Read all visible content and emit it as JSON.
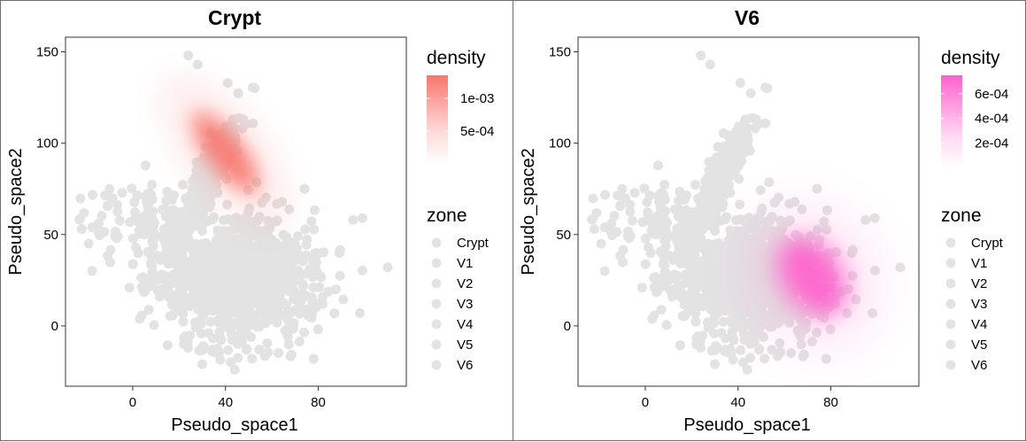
{
  "chart_data": [
    {
      "type": "scatter",
      "title": "Crypt",
      "xlabel": "Pseudo_space1",
      "ylabel": "Pseudo_space2",
      "xlim": [
        -29,
        118
      ],
      "ylim": [
        -33,
        158
      ],
      "xticks": [
        0,
        40,
        80
      ],
      "yticks": [
        0,
        50,
        100,
        150
      ],
      "point_color": "#e3e3e3",
      "density_color": "#f8766d",
      "density_center": [
        40,
        95
      ],
      "density_axes": [
        6,
        18
      ],
      "density_angle_deg": -38,
      "density_legend": {
        "title": "density",
        "labels": [
          "1e-03",
          "5e-04"
        ],
        "values": [
          0.001,
          0.0005
        ],
        "range": [
          0,
          0.00135
        ]
      },
      "zone_legend": {
        "title": "zone",
        "labels": [
          "Crypt",
          "V1",
          "V2",
          "V3",
          "V4",
          "V5",
          "V6"
        ]
      }
    },
    {
      "type": "scatter",
      "title": "V6",
      "xlabel": "Pseudo_space1",
      "ylabel": "Pseudo_space2",
      "xlim": [
        -29,
        118
      ],
      "ylim": [
        -33,
        158
      ],
      "xticks": [
        0,
        40,
        80
      ],
      "yticks": [
        0,
        50,
        100,
        150
      ],
      "point_color": "#e3e3e3",
      "density_color": "#ff61cc",
      "density_center": [
        72,
        27
      ],
      "density_axes": [
        10,
        16
      ],
      "density_angle_deg": -35,
      "density_legend": {
        "title": "density",
        "labels": [
          "6e-04",
          "4e-04",
          "2e-04"
        ],
        "values": [
          0.0006,
          0.0004,
          0.0002
        ],
        "range": [
          0,
          0.00075
        ]
      },
      "zone_legend": {
        "title": "zone",
        "labels": [
          "Crypt",
          "V1",
          "V2",
          "V3",
          "V4",
          "V5",
          "V6"
        ]
      }
    }
  ]
}
